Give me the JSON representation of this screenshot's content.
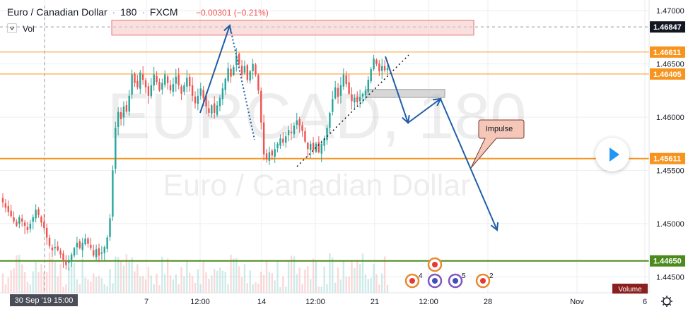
{
  "header": {
    "pair": "Euro / Canadian Dollar",
    "sep": "·",
    "interval": "180",
    "exchange": "FXCM",
    "change": "−0.00301 (−0.21%)",
    "vol_label": "Vol"
  },
  "watermark": {
    "symbol": "EURCAD, 180",
    "name": "Euro / Canadian Dollar"
  },
  "colors": {
    "up": "#26a69a",
    "down": "#ef5350",
    "orange": "#f7941d",
    "green": "#4c8a1d",
    "arrow": "#1f5fa8"
  },
  "chart_data": {
    "type": "candlestick",
    "ylim": [
      1.4435,
      1.471
    ],
    "y_ticks": [
      "1.47000",
      "1.46500",
      "1.46000",
      "1.45500",
      "1.45000",
      "1.44500"
    ],
    "x_ticks": [
      "7",
      "12:00",
      "14",
      "12:00",
      "21",
      "12:00",
      "28",
      "Nov",
      "6"
    ],
    "x_crosshair_label": "30 Sep '19   15:00",
    "price_labels": [
      {
        "value": 1.46847,
        "label": "1.46847",
        "color": "dark"
      },
      {
        "value": 1.46611,
        "label": "1.46611",
        "color": "orange"
      },
      {
        "value": 1.46405,
        "label": "1.46405",
        "color": "orange"
      },
      {
        "value": 1.45611,
        "label": "1.45611",
        "color": "orange"
      },
      {
        "value": 1.4465,
        "label": "1.44650",
        "color": "green"
      }
    ],
    "levels": [
      {
        "value": 1.46611,
        "color": "orange",
        "width": 1
      },
      {
        "value": 1.46405,
        "color": "orange",
        "width": 1
      },
      {
        "value": 1.45611,
        "color": "orange",
        "width": 2
      },
      {
        "value": 1.4465,
        "color": "green",
        "width": 2
      }
    ],
    "zones": [
      {
        "y_top": 1.4691,
        "y_bottom": 1.4677
      },
      {
        "y_top": 1.4626,
        "y_bottom": 1.46185
      }
    ],
    "annotation": {
      "text": "Impulse"
    },
    "volume_label": "Volume",
    "event_counts": [
      "4",
      "5",
      "2"
    ],
    "closes": [
      1.452,
      1.4515,
      1.4511,
      1.4507,
      1.4502,
      1.4498,
      1.4506,
      1.4502,
      1.4498,
      1.4494,
      1.45,
      1.4506,
      1.4513,
      1.4508,
      1.4501,
      1.4496,
      1.4487,
      1.4479,
      1.4475,
      1.4478,
      1.4475,
      1.4471,
      1.4466,
      1.4461,
      1.4466,
      1.4471,
      1.4477,
      1.4482,
      1.4477,
      1.4482,
      1.4486,
      1.4481,
      1.4477,
      1.447,
      1.4476,
      1.447,
      1.4473,
      1.4478,
      1.4487,
      1.4505,
      1.455,
      1.459,
      1.4605,
      1.4598,
      1.461,
      1.4605,
      1.462,
      1.464,
      1.4632,
      1.4628,
      1.4642,
      1.4635,
      1.4628,
      1.462,
      1.463,
      1.464,
      1.4633,
      1.4625,
      1.4632,
      1.464,
      1.4632,
      1.4625,
      1.4631,
      1.4638,
      1.463,
      1.4622,
      1.463,
      1.4637,
      1.4629,
      1.462,
      1.4613,
      1.462,
      1.4627,
      1.4618,
      1.461,
      1.4604,
      1.4611,
      1.4604,
      1.4611,
      1.4618,
      1.4627,
      1.4636,
      1.4646,
      1.4638,
      1.4647,
      1.4658,
      1.465,
      1.464,
      1.4648,
      1.4635,
      1.4643,
      1.465,
      1.464,
      1.4625,
      1.4595,
      1.4565,
      1.456,
      1.4567,
      1.4564,
      1.457,
      1.4575,
      1.458,
      1.4576,
      1.4582,
      1.4588,
      1.4585,
      1.4592,
      1.4597,
      1.4592,
      1.4587,
      1.4577,
      1.457,
      1.4575,
      1.4569,
      1.4575,
      1.4567,
      1.4575,
      1.458,
      1.459,
      1.4604,
      1.4617,
      1.4628,
      1.4619,
      1.463,
      1.464,
      1.4631,
      1.4622,
      1.4615,
      1.4618,
      1.4614,
      1.4619,
      1.4622,
      1.4625,
      1.4635,
      1.4645,
      1.4655,
      1.465,
      1.4643,
      1.4648,
      1.4644,
      1.4646
    ]
  }
}
